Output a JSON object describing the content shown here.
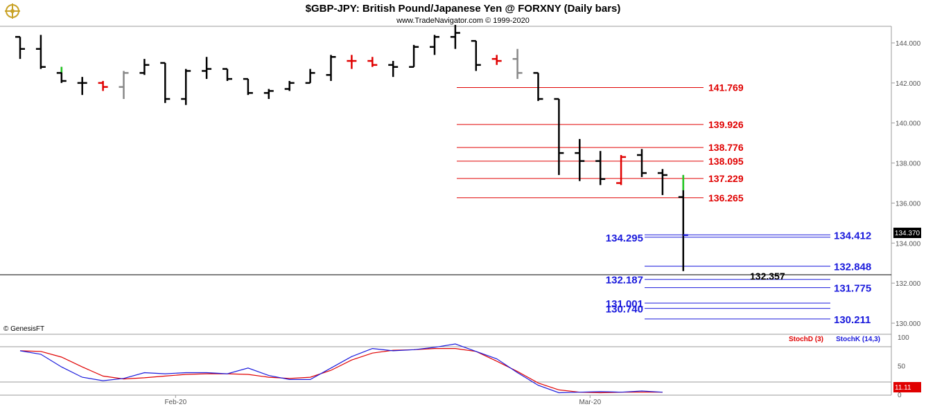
{
  "header": {
    "title": "$GBP-JPY:  British Pound/Japanese Yen @ FORXNY  (Daily bars)",
    "subtitle": "www.TradeNavigator.com © 1999-2020",
    "logo_icon": "ship-wheel-icon"
  },
  "watermark": "© GenesisFT",
  "colors": {
    "up": "#000000",
    "red": "#e00000",
    "gray": "#888888",
    "green": "#22c822",
    "blue": "#1a1adc",
    "stoch_d": "#e00000",
    "stoch_k": "#1a1adc"
  },
  "chart_data": [
    {
      "type": "ohlc",
      "title": "$GBP-JPY:  British Pound/Japanese Yen @ FORXNY  (Daily bars)",
      "x_labels": [
        {
          "label": "Feb-20",
          "bar": 7
        },
        {
          "label": "Mar-20",
          "bar": 27
        }
      ],
      "ylim": [
        129.2,
        145.0
      ],
      "y_ticks": [
        "144.000",
        "142.000",
        "140.000",
        "138.000",
        "136.000",
        "134.000",
        "132.000",
        "130.000"
      ],
      "last_price": "134.370",
      "bars": [
        {
          "o": 144.3,
          "h": 144.3,
          "l": 143.2,
          "c": 143.7,
          "color": "black"
        },
        {
          "o": 143.7,
          "h": 144.4,
          "l": 142.7,
          "c": 142.8,
          "color": "black"
        },
        {
          "o": 142.5,
          "h": 142.8,
          "l": 142.0,
          "c": 142.1,
          "color": "black",
          "hi_color": "green"
        },
        {
          "o": 142.0,
          "h": 142.3,
          "l": 141.4,
          "c": 142.0,
          "color": "black"
        },
        {
          "o": 142.0,
          "h": 142.1,
          "l": 141.6,
          "c": 141.8,
          "color": "red"
        },
        {
          "o": 141.8,
          "h": 142.6,
          "l": 141.2,
          "c": 142.5,
          "color": "gray"
        },
        {
          "o": 142.5,
          "h": 143.2,
          "l": 142.4,
          "c": 142.9,
          "color": "black"
        },
        {
          "o": 143.0,
          "h": 143.0,
          "l": 141.0,
          "c": 141.2,
          "color": "black"
        },
        {
          "o": 141.2,
          "h": 142.7,
          "l": 140.9,
          "c": 142.6,
          "color": "black"
        },
        {
          "o": 142.6,
          "h": 143.3,
          "l": 142.2,
          "c": 142.7,
          "color": "black"
        },
        {
          "o": 142.7,
          "h": 142.7,
          "l": 142.1,
          "c": 142.2,
          "color": "black"
        },
        {
          "o": 142.2,
          "h": 142.2,
          "l": 141.4,
          "c": 141.5,
          "color": "black"
        },
        {
          "o": 141.5,
          "h": 141.7,
          "l": 141.2,
          "c": 141.6,
          "color": "black"
        },
        {
          "o": 141.7,
          "h": 142.1,
          "l": 141.6,
          "c": 142.0,
          "color": "black"
        },
        {
          "o": 142.0,
          "h": 142.7,
          "l": 142.0,
          "c": 142.5,
          "color": "black"
        },
        {
          "o": 142.4,
          "h": 143.4,
          "l": 142.1,
          "c": 143.3,
          "color": "black"
        },
        {
          "o": 143.1,
          "h": 143.4,
          "l": 142.7,
          "c": 143.1,
          "color": "red"
        },
        {
          "o": 143.1,
          "h": 143.3,
          "l": 142.8,
          "c": 142.9,
          "color": "red"
        },
        {
          "o": 142.9,
          "h": 143.1,
          "l": 142.3,
          "c": 142.8,
          "color": "black"
        },
        {
          "o": 142.8,
          "h": 143.9,
          "l": 142.8,
          "c": 143.8,
          "color": "black"
        },
        {
          "o": 143.8,
          "h": 144.4,
          "l": 143.4,
          "c": 144.3,
          "color": "black"
        },
        {
          "o": 144.3,
          "h": 144.9,
          "l": 143.7,
          "c": 144.5,
          "color": "black"
        },
        {
          "o": 144.1,
          "h": 144.1,
          "l": 142.6,
          "c": 142.9,
          "color": "black"
        },
        {
          "o": 143.2,
          "h": 143.4,
          "l": 142.9,
          "c": 143.1,
          "color": "red"
        },
        {
          "o": 143.2,
          "h": 143.7,
          "l": 142.2,
          "c": 142.5,
          "color": "gray"
        },
        {
          "o": 142.5,
          "h": 142.5,
          "l": 141.1,
          "c": 141.2,
          "color": "black"
        },
        {
          "o": 141.2,
          "h": 141.2,
          "l": 137.4,
          "c": 138.5,
          "color": "black"
        },
        {
          "o": 138.5,
          "h": 139.2,
          "l": 137.1,
          "c": 138.1,
          "color": "black"
        },
        {
          "o": 138.1,
          "h": 138.6,
          "l": 136.9,
          "c": 137.2,
          "color": "black"
        },
        {
          "o": 137.0,
          "h": 138.4,
          "l": 136.9,
          "c": 138.3,
          "color": "red"
        },
        {
          "o": 138.4,
          "h": 138.7,
          "l": 137.3,
          "c": 137.5,
          "color": "black"
        },
        {
          "o": 137.5,
          "h": 137.7,
          "l": 136.4,
          "c": 137.4,
          "color": "black"
        },
        {
          "o": 136.3,
          "h": 137.4,
          "l": 132.6,
          "c": 134.4,
          "color": "black",
          "hi_color": "green",
          "close_color": "blue"
        }
      ],
      "levels_red": [
        "141.769",
        "139.926",
        "138.776",
        "138.095",
        "137.229",
        "136.265"
      ],
      "levels_blue_right": [
        "134.412",
        "132.848",
        "131.775",
        "130.211"
      ],
      "levels_blue_left": [
        "134.295",
        "132.187",
        "131.001",
        "130.740"
      ],
      "black_level": "132.357"
    },
    {
      "type": "line",
      "series": [
        {
          "name": "StochD (3)",
          "values": [
            76,
            75,
            65,
            48,
            32,
            27,
            29,
            32,
            35,
            36,
            36,
            35,
            30,
            28,
            30,
            42,
            60,
            72,
            77,
            78,
            80,
            80,
            75,
            58,
            40,
            20,
            8,
            4,
            3,
            4,
            4,
            4
          ]
        },
        {
          "name": "StochK (14,3)",
          "values": [
            76,
            70,
            48,
            30,
            24,
            28,
            38,
            36,
            38,
            38,
            36,
            46,
            33,
            26,
            26,
            46,
            66,
            80,
            76,
            78,
            82,
            88,
            75,
            62,
            38,
            16,
            3,
            4,
            5,
            4,
            6,
            4
          ]
        }
      ],
      "ylim": [
        0,
        100
      ],
      "y_ticks": [
        "100",
        "50",
        "0"
      ],
      "last_value": "11.11"
    }
  ]
}
